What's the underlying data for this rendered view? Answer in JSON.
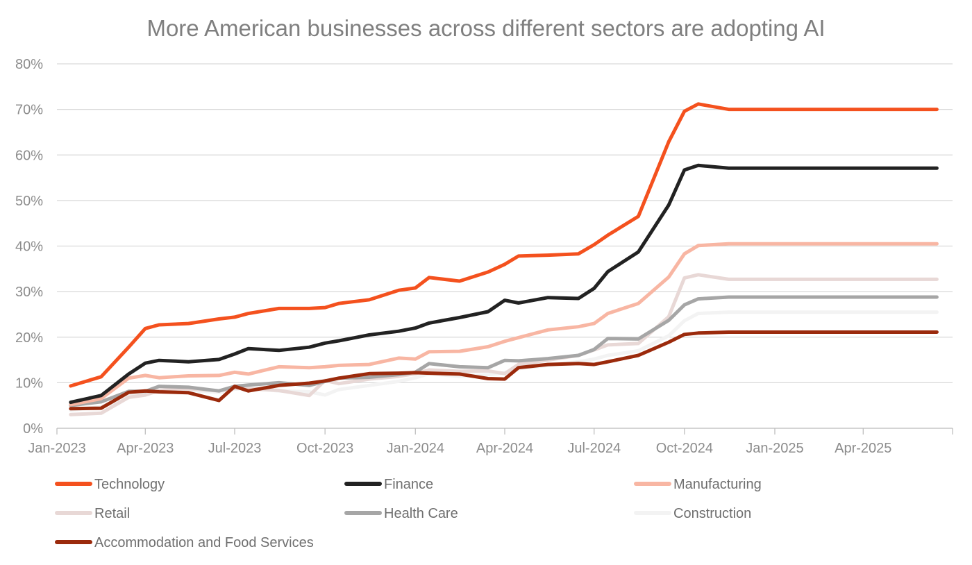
{
  "chart_data": {
    "type": "line",
    "title": "More American businesses across different sectors are adopting AI",
    "xlabel": "",
    "ylabel": "",
    "ylim": [
      0,
      0.8
    ],
    "y_ticks": [
      {
        "value": 0,
        "label": "0%"
      },
      {
        "value": 0.1,
        "label": "10%"
      },
      {
        "value": 0.2,
        "label": "20%"
      },
      {
        "value": 0.3,
        "label": "30%"
      },
      {
        "value": 0.4,
        "label": "40%"
      },
      {
        "value": 0.5,
        "label": "50%"
      },
      {
        "value": 0.6,
        "label": "60%"
      },
      {
        "value": 0.7,
        "label": "70%"
      },
      {
        "value": 0.8,
        "label": "80%"
      }
    ],
    "x_ticks": [
      {
        "value": "2023-01",
        "label": "Jan-2023"
      },
      {
        "value": "2023-04",
        "label": "Apr-2023"
      },
      {
        "value": "2023-07",
        "label": "Jul-2023"
      },
      {
        "value": "2023-10",
        "label": "Oct-2023"
      },
      {
        "value": "2024-01",
        "label": "Jan-2024"
      },
      {
        "value": "2024-04",
        "label": "Apr-2024"
      },
      {
        "value": "2024-07",
        "label": "Jul-2024"
      },
      {
        "value": "2024-10",
        "label": "Oct-2024"
      },
      {
        "value": "2025-01",
        "label": "Jan-2025"
      },
      {
        "value": "2025-04",
        "label": "Apr-2025"
      }
    ],
    "x": [
      "2023-01-15",
      "2023-02-15",
      "2023-03-15",
      "2023-04-01",
      "2023-04-15",
      "2023-05-15",
      "2023-06-15",
      "2023-07-01",
      "2023-07-15",
      "2023-08-15",
      "2023-09-15",
      "2023-10-01",
      "2023-10-15",
      "2023-11-15",
      "2023-12-15",
      "2024-01-01",
      "2024-01-15",
      "2024-02-15",
      "2024-03-15",
      "2024-04-01",
      "2024-04-15",
      "2024-05-15",
      "2024-06-15",
      "2024-07-01",
      "2024-07-15",
      "2024-08-15",
      "2024-09-15",
      "2024-10-01",
      "2024-10-15",
      "2024-11-15",
      "2024-12-15",
      "2025-01-01",
      "2025-01-15",
      "2025-02-15",
      "2025-03-15",
      "2025-04-01",
      "2025-04-15",
      "2025-05-15",
      "2025-06-15"
    ],
    "legend_position": "bottom",
    "grid": true,
    "series": [
      {
        "name": "Technology",
        "color": "#f4511e",
        "width": 5,
        "values": [
          0.093,
          0.113,
          0.178,
          0.219,
          0.227,
          0.23,
          0.24,
          0.244,
          0.252,
          0.263,
          0.263,
          0.265,
          0.274,
          0.282,
          0.303,
          0.308,
          0.331,
          0.323,
          0.343,
          0.36,
          0.378,
          0.38,
          0.383,
          0.403,
          0.424,
          0.465,
          0.629,
          0.696,
          0.712,
          0.7,
          0.7,
          0.7,
          0.7,
          0.7,
          0.7,
          0.7,
          0.7,
          0.7,
          0.7
        ]
      },
      {
        "name": "Finance",
        "color": "#222222",
        "width": 5,
        "values": [
          0.057,
          0.072,
          0.119,
          0.143,
          0.149,
          0.146,
          0.151,
          0.163,
          0.175,
          0.171,
          0.178,
          0.187,
          0.192,
          0.205,
          0.213,
          0.22,
          0.231,
          0.243,
          0.256,
          0.281,
          0.275,
          0.287,
          0.285,
          0.307,
          0.344,
          0.387,
          0.49,
          0.567,
          0.577,
          0.571,
          0.571,
          0.571,
          0.571,
          0.571,
          0.571,
          0.571,
          0.571,
          0.571,
          0.571
        ]
      },
      {
        "name": "Manufacturing",
        "color": "#f8b6a3",
        "width": 5,
        "values": [
          0.052,
          0.065,
          0.11,
          0.116,
          0.111,
          0.115,
          0.116,
          0.123,
          0.119,
          0.135,
          0.133,
          0.135,
          0.138,
          0.14,
          0.154,
          0.152,
          0.168,
          0.169,
          0.179,
          0.191,
          0.199,
          0.216,
          0.223,
          0.23,
          0.252,
          0.274,
          0.332,
          0.383,
          0.401,
          0.405,
          0.405,
          0.405,
          0.405,
          0.405,
          0.405,
          0.405,
          0.405,
          0.405,
          0.405
        ]
      },
      {
        "name": "Retail",
        "color": "#e8d8d6",
        "width": 5,
        "values": [
          0.03,
          0.033,
          0.068,
          0.073,
          0.083,
          0.087,
          0.082,
          0.088,
          0.087,
          0.083,
          0.072,
          0.105,
          0.098,
          0.108,
          0.114,
          0.12,
          0.128,
          0.125,
          0.126,
          0.12,
          0.14,
          0.15,
          0.16,
          0.172,
          0.183,
          0.186,
          0.245,
          0.33,
          0.337,
          0.327,
          0.327,
          0.327,
          0.327,
          0.327,
          0.327,
          0.327,
          0.327,
          0.327,
          0.327
        ]
      },
      {
        "name": "Health Care",
        "color": "#a6a6a6",
        "width": 5,
        "values": [
          0.05,
          0.058,
          0.081,
          0.081,
          0.092,
          0.09,
          0.082,
          0.092,
          0.095,
          0.1,
          0.094,
          0.103,
          0.11,
          0.112,
          0.118,
          0.123,
          0.142,
          0.135,
          0.133,
          0.149,
          0.148,
          0.153,
          0.16,
          0.173,
          0.197,
          0.196,
          0.237,
          0.271,
          0.284,
          0.288,
          0.288,
          0.288,
          0.288,
          0.288,
          0.288,
          0.288,
          0.288,
          0.288,
          0.288
        ]
      },
      {
        "name": "Construction",
        "color": "#f3f3f3",
        "width": 5,
        "values": [
          0.04,
          0.047,
          0.07,
          0.077,
          0.08,
          0.083,
          0.079,
          0.086,
          0.088,
          0.082,
          0.08,
          0.073,
          0.085,
          0.094,
          0.103,
          0.111,
          0.12,
          0.114,
          0.118,
          0.122,
          0.131,
          0.138,
          0.146,
          0.152,
          0.16,
          0.17,
          0.203,
          0.236,
          0.252,
          0.255,
          0.255,
          0.255,
          0.255,
          0.255,
          0.255,
          0.255,
          0.255,
          0.255,
          0.255
        ]
      },
      {
        "name": "Accommodation and Food Services",
        "color": "#9b2a0c",
        "width": 5,
        "values": [
          0.043,
          0.044,
          0.079,
          0.082,
          0.08,
          0.078,
          0.061,
          0.092,
          0.082,
          0.094,
          0.099,
          0.104,
          0.11,
          0.12,
          0.121,
          0.122,
          0.121,
          0.119,
          0.109,
          0.108,
          0.133,
          0.14,
          0.142,
          0.14,
          0.146,
          0.16,
          0.189,
          0.206,
          0.209,
          0.211,
          0.211,
          0.211,
          0.211,
          0.211,
          0.211,
          0.211,
          0.211,
          0.211,
          0.211
        ]
      }
    ]
  }
}
